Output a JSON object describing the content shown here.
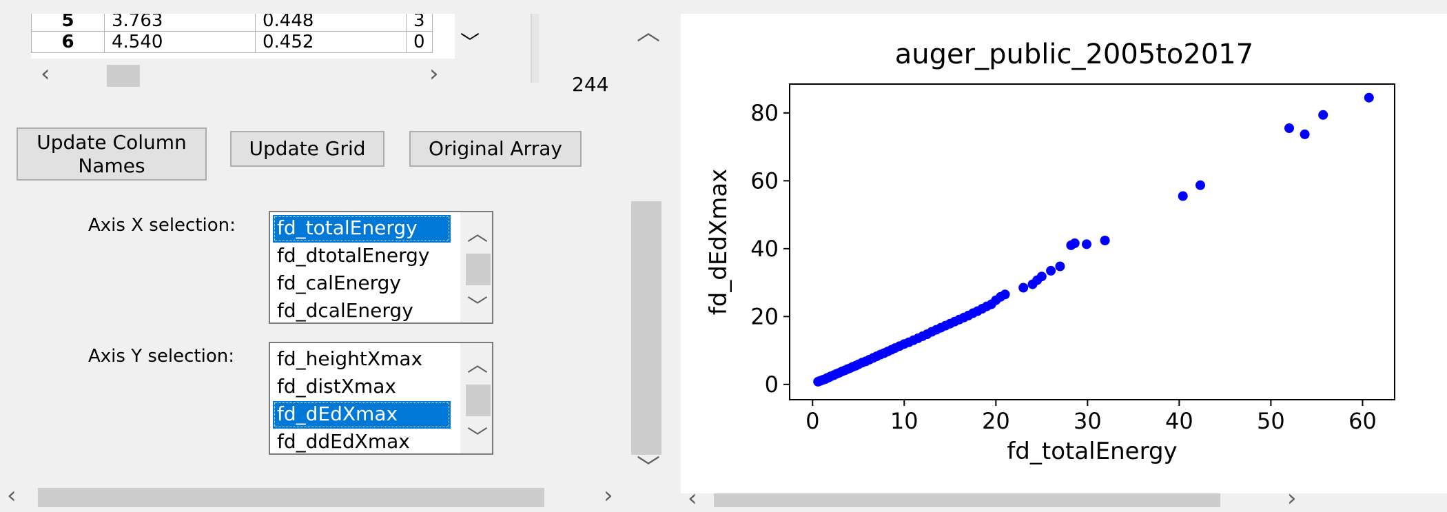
{
  "grid": {
    "rows": [
      {
        "index": "5",
        "c1": "3.763",
        "c2": "0.448",
        "c3": "3"
      },
      {
        "index": "6",
        "c1": "4.540",
        "c2": "0.452",
        "c3": "0"
      }
    ],
    "row_count": "244"
  },
  "buttons": {
    "update_column_names": "Update Column Names",
    "update_grid": "Update Grid",
    "original_array": "Original Array"
  },
  "axis_x": {
    "label": "Axis X selection:",
    "options": [
      "fd_totalEnergy",
      "fd_dtotalEnergy",
      "fd_calEnergy",
      "fd_dcalEnergy"
    ],
    "selected_index": 0
  },
  "axis_y": {
    "label": "Axis Y selection:",
    "options": [
      "fd_heightXmax",
      "fd_distXmax",
      "fd_dEdXmax",
      "fd_ddEdXmax"
    ],
    "selected_index": 2
  },
  "icons": {
    "scroll_up": "chevron-up-icon",
    "scroll_down": "chevron-down-icon",
    "scroll_left": "chevron-left-icon",
    "scroll_right": "chevron-right-icon"
  },
  "chart_data": {
    "type": "scatter",
    "title": "auger_public_2005to2017",
    "xlabel": "fd_totalEnergy",
    "ylabel": "fd_dEdXmax",
    "xlim": [
      -2.5,
      63.5
    ],
    "ylim": [
      -4.5,
      88.5
    ],
    "xticks": [
      0,
      10,
      20,
      30,
      40,
      50,
      60
    ],
    "yticks": [
      0,
      20,
      40,
      60,
      80
    ],
    "color": "#0000ff",
    "series": [
      {
        "x": [
          0.6,
          0.8,
          1.0,
          1.2,
          1.4,
          1.6,
          1.8,
          2.0,
          2.3,
          2.6,
          2.9,
          3.2,
          3.5,
          3.8,
          4.1,
          4.4,
          4.7,
          5.0,
          5.4,
          5.8,
          6.2,
          6.6,
          7.0,
          7.4,
          7.8,
          8.2,
          8.6,
          9.0,
          9.5,
          10.0,
          10.5,
          11.0,
          11.5,
          12.0,
          12.5,
          13.0,
          13.5,
          14.0,
          14.5,
          15.0,
          15.5,
          16.0,
          16.5,
          17.0,
          17.5,
          18.0,
          18.5,
          19.0,
          19.5,
          20.0,
          20.5,
          21.0,
          23.0,
          24.0,
          24.5,
          25.0,
          26.0,
          27.0,
          28.2,
          28.6,
          29.9,
          31.9,
          40.4,
          42.3,
          52.0,
          53.7,
          55.7,
          60.7
        ],
        "y": [
          0.8,
          1.0,
          1.2,
          1.4,
          1.6,
          1.9,
          2.1,
          2.4,
          2.7,
          3.1,
          3.4,
          3.8,
          4.1,
          4.5,
          4.8,
          5.2,
          5.5,
          5.9,
          6.4,
          6.8,
          7.3,
          7.8,
          8.3,
          8.8,
          9.2,
          9.7,
          10.2,
          10.7,
          11.3,
          11.9,
          12.4,
          13.0,
          13.6,
          14.2,
          14.8,
          15.5,
          16.1,
          16.7,
          17.3,
          17.9,
          18.5,
          19.1,
          19.7,
          20.3,
          21.0,
          21.6,
          22.3,
          23.0,
          23.6,
          24.8,
          25.8,
          26.5,
          28.5,
          29.5,
          30.7,
          31.8,
          33.5,
          34.8,
          41.0,
          41.6,
          41.3,
          42.4,
          55.5,
          58.7,
          75.5,
          73.7,
          79.4,
          84.5
        ]
      }
    ]
  }
}
